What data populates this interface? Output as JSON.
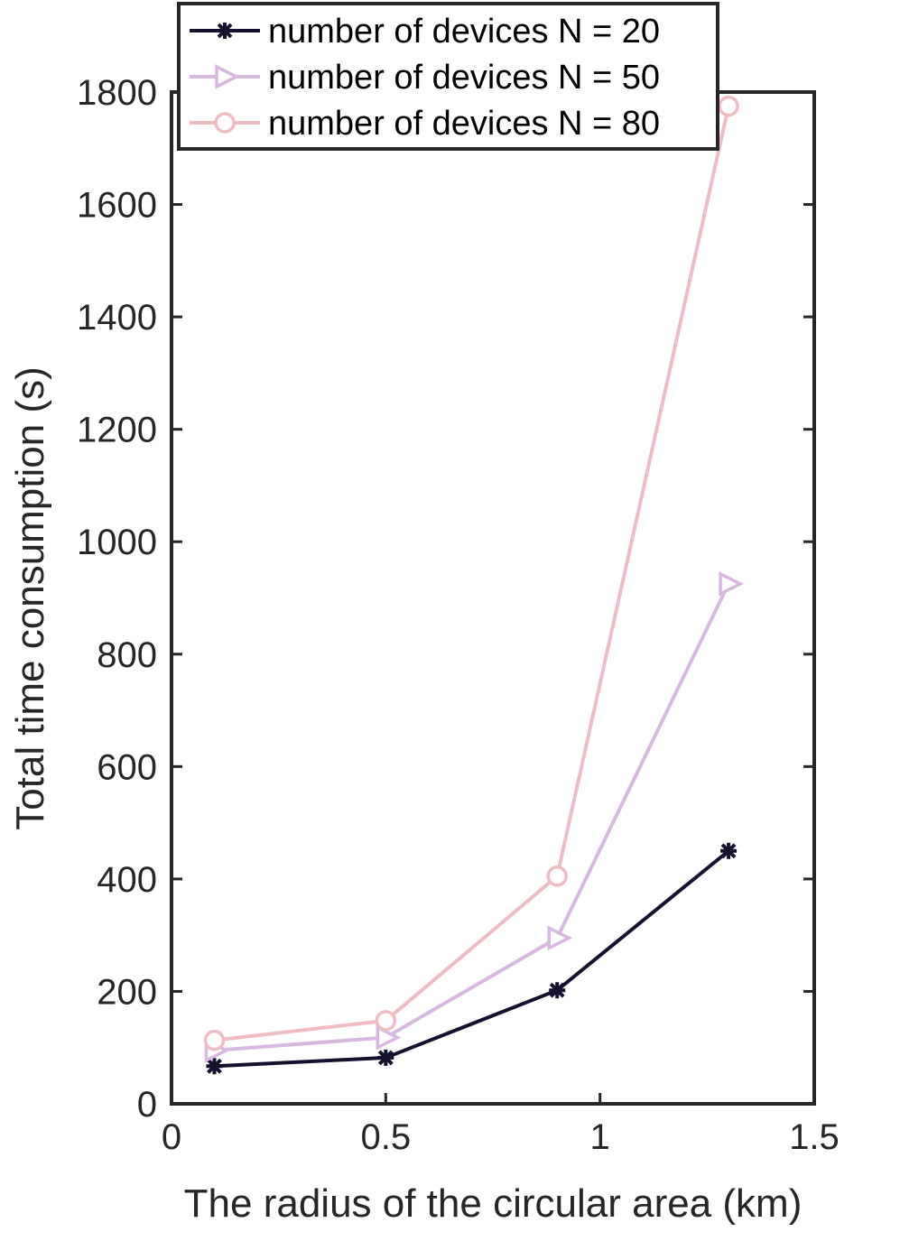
{
  "chart_data": {
    "type": "line",
    "title": "",
    "xlabel": "The radius of the circular area (km)",
    "ylabel": "Total time consumption (s)",
    "xlim": [
      0,
      1.5
    ],
    "ylim": [
      0,
      1800
    ],
    "xticks": [
      0,
      0.5,
      1,
      1.5
    ],
    "xtick_labels": [
      "0",
      "0.5",
      "1",
      "1.5"
    ],
    "yticks": [
      0,
      200,
      400,
      600,
      800,
      1000,
      1200,
      1400,
      1600,
      1800
    ],
    "ytick_labels": [
      "0",
      "200",
      "400",
      "600",
      "800",
      "1000",
      "1200",
      "1400",
      "1600",
      "1800"
    ],
    "x": [
      0.1,
      0.5,
      0.9,
      1.3
    ],
    "grid": false,
    "legend_position": "top",
    "series": [
      {
        "name": "number of devices N = 20",
        "values": [
          67,
          82,
          202,
          450
        ],
        "color": "#14112e",
        "marker": "asterisk"
      },
      {
        "name": "number of devices N = 50",
        "values": [
          95,
          118,
          295,
          925
        ],
        "color": "#d8b8e0",
        "marker": "triangle-right"
      },
      {
        "name": "number of devices N = 80",
        "values": [
          113,
          148,
          405,
          1775
        ],
        "color": "#f0bcc4",
        "marker": "circle"
      }
    ]
  }
}
